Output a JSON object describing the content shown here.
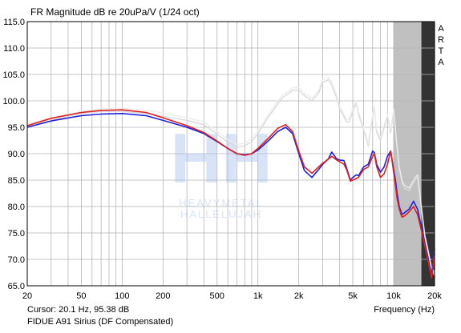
{
  "window_title": "FR Magnitude dB re 20uPa/V (1/24 oct)",
  "side_label": [
    "A",
    "R",
    "T",
    "A"
  ],
  "cursor_text": "Cursor: 20.1 Hz, 95.38 dB",
  "device_text": "FIDUE A91 Sirius (DF Compensated)",
  "watermark": {
    "logo": "HH",
    "line1": "HEAVYMETAL",
    "line2": "HALLELUJAH"
  },
  "chart_data": {
    "type": "line",
    "title": "FR Magnitude dB re 20uPa/V (1/24 oct)",
    "xlabel": "Frequency (Hz)",
    "ylabel": "",
    "xscale": "log",
    "xlim": [
      20,
      20000
    ],
    "ylim": [
      65,
      115
    ],
    "grid": true,
    "x_tick_labels": [
      {
        "value": 20,
        "label": "20"
      },
      {
        "value": 50,
        "label": "50"
      },
      {
        "value": 100,
        "label": "100"
      },
      {
        "value": 200,
        "label": "200"
      },
      {
        "value": 500,
        "label": "500"
      },
      {
        "value": 1000,
        "label": "1k"
      },
      {
        "value": 2000,
        "label": "2k"
      },
      {
        "value": 5000,
        "label": "5k"
      },
      {
        "value": 10000,
        "label": "10k"
      },
      {
        "value": 20000,
        "label": "20k"
      }
    ],
    "y_ticks": [
      {
        "value": 115,
        "label": "115.0"
      },
      {
        "value": 110,
        "label": "110.0"
      },
      {
        "value": 105,
        "label": "105.0"
      },
      {
        "value": 100,
        "label": "100.0"
      },
      {
        "value": 95,
        "label": "95.0"
      },
      {
        "value": 90,
        "label": "90.0"
      },
      {
        "value": 85,
        "label": "85.0"
      },
      {
        "value": 80,
        "label": "80.0"
      },
      {
        "value": 75,
        "label": "75.0"
      },
      {
        "value": 70,
        "label": "70.0"
      },
      {
        "value": 65,
        "label": "65.0"
      }
    ],
    "shaded_bands": [
      {
        "from": 10000,
        "to": 16000,
        "color": "#c0c0c0"
      },
      {
        "from": 16000,
        "to": 20000,
        "color": "#333333"
      }
    ],
    "series": [
      {
        "color": "#d8d8d8",
        "x": [
          20,
          30,
          50,
          70,
          100,
          150,
          200,
          300,
          400,
          500,
          600,
          700,
          800,
          900,
          1000,
          1200,
          1500,
          1800,
          2000,
          2200,
          2500,
          2800,
          3000,
          3300,
          3500,
          3800,
          4000,
          4300,
          4500,
          4700,
          5000,
          5300,
          5500,
          6000,
          6500,
          7000,
          7200,
          7500,
          8000,
          8500,
          9000,
          9500,
          10000,
          10500,
          11000,
          11500,
          12000,
          13000,
          14000,
          15000,
          16000,
          17000,
          18000,
          19000,
          20000
        ],
        "y": [
          95.2,
          96.3,
          97.6,
          98.0,
          98.0,
          97.6,
          97.1,
          96.3,
          95.5,
          93.7,
          92.2,
          91.2,
          91.5,
          92.3,
          93.8,
          97.0,
          100.5,
          102.0,
          102.0,
          101.0,
          100.0,
          101.5,
          103.5,
          104.0,
          103.0,
          100.5,
          98.5,
          97.0,
          96.0,
          96.0,
          98.0,
          99.5,
          97.5,
          94.5,
          91.5,
          97.0,
          98.5,
          94.0,
          92.5,
          95.0,
          97.0,
          94.0,
          98.0,
          92.0,
          87.0,
          84.5,
          83.5,
          83.0,
          84.5,
          85.5,
          79.5,
          74.0,
          71.0,
          68.0,
          67.0
        ]
      },
      {
        "color": "#ececec",
        "x": [
          20,
          30,
          50,
          70,
          100,
          150,
          200,
          300,
          400,
          500,
          600,
          700,
          800,
          900,
          1000,
          1200,
          1500,
          1800,
          2000,
          2200,
          2500,
          2800,
          3000,
          3300,
          3500,
          3800,
          4000,
          4300,
          4500,
          4700,
          5000,
          5300,
          5500,
          6000,
          6500,
          7000,
          7200,
          7500,
          8000,
          8500,
          9000,
          9500,
          10000,
          10500,
          11000,
          11500,
          12000,
          13000,
          14000,
          15000,
          16000,
          17000,
          18000,
          19000,
          20000
        ],
        "y": [
          95.6,
          96.8,
          98.0,
          98.5,
          98.6,
          98.2,
          97.7,
          96.8,
          96.0,
          94.2,
          92.7,
          91.7,
          92.0,
          92.8,
          94.3,
          97.5,
          101.0,
          102.5,
          102.5,
          101.5,
          100.5,
          102.0,
          104.0,
          104.5,
          103.5,
          101.0,
          99.0,
          97.5,
          96.5,
          96.5,
          98.5,
          100.0,
          98.0,
          95.0,
          92.0,
          97.5,
          99.0,
          94.5,
          93.0,
          95.5,
          97.5,
          94.5,
          98.5,
          92.5,
          87.5,
          85.0,
          84.0,
          83.5,
          85.0,
          86.0,
          80.0,
          74.5,
          71.5,
          68.5,
          67.5
        ]
      },
      {
        "color": "#1f1fe0",
        "x": [
          20,
          30,
          50,
          70,
          100,
          150,
          200,
          300,
          400,
          500,
          600,
          700,
          800,
          900,
          1000,
          1200,
          1400,
          1600,
          1800,
          2000,
          2200,
          2500,
          2800,
          3000,
          3300,
          3500,
          3800,
          4000,
          4300,
          4500,
          4800,
          5000,
          5300,
          5500,
          6000,
          6500,
          7000,
          7200,
          7500,
          8000,
          8500,
          9000,
          9500,
          10000,
          10300,
          10600,
          11000,
          11500,
          12000,
          13000,
          14000,
          15000,
          16000,
          17000,
          18000,
          19000,
          20000
        ],
        "y": [
          95.0,
          96.2,
          97.2,
          97.5,
          97.6,
          97.2,
          96.3,
          95.0,
          93.8,
          92.3,
          91.0,
          90.0,
          89.8,
          90.0,
          90.7,
          92.5,
          94.2,
          95.0,
          93.8,
          90.0,
          86.8,
          85.5,
          87.0,
          88.0,
          89.0,
          90.3,
          89.0,
          88.8,
          88.7,
          87.3,
          85.0,
          85.5,
          86.0,
          85.8,
          87.5,
          88.0,
          90.5,
          90.2,
          88.0,
          86.5,
          87.5,
          89.5,
          90.5,
          87.0,
          85.0,
          82.5,
          80.0,
          78.5,
          78.8,
          79.5,
          81.0,
          79.5,
          76.0,
          73.0,
          70.0,
          67.0,
          72.0
        ]
      },
      {
        "color": "#e01f1f",
        "x": [
          20,
          30,
          50,
          70,
          100,
          150,
          200,
          300,
          400,
          500,
          600,
          700,
          800,
          900,
          1000,
          1200,
          1400,
          1600,
          1800,
          2000,
          2200,
          2500,
          2800,
          3000,
          3300,
          3500,
          3800,
          4000,
          4300,
          4500,
          4800,
          5000,
          5300,
          5500,
          6000,
          6500,
          7000,
          7200,
          7500,
          8000,
          8500,
          9000,
          9500,
          10000,
          10300,
          10600,
          11000,
          11500,
          12000,
          13000,
          14000,
          15000,
          16000,
          17000,
          18000,
          19000,
          20000
        ],
        "y": [
          95.3,
          96.7,
          97.8,
          98.2,
          98.3,
          97.8,
          96.8,
          95.3,
          94.0,
          92.4,
          91.0,
          90.0,
          89.7,
          90.0,
          91.0,
          93.0,
          94.8,
          95.5,
          94.2,
          90.5,
          87.5,
          86.3,
          87.5,
          88.2,
          89.0,
          89.5,
          88.8,
          88.5,
          88.0,
          87.0,
          84.8,
          85.0,
          85.3,
          85.5,
          87.0,
          87.5,
          89.5,
          90.0,
          87.5,
          85.5,
          86.2,
          88.0,
          90.5,
          86.5,
          84.0,
          81.5,
          79.5,
          78.0,
          78.2,
          79.0,
          80.0,
          78.5,
          75.5,
          72.5,
          69.5,
          66.5,
          71.0
        ]
      }
    ]
  }
}
